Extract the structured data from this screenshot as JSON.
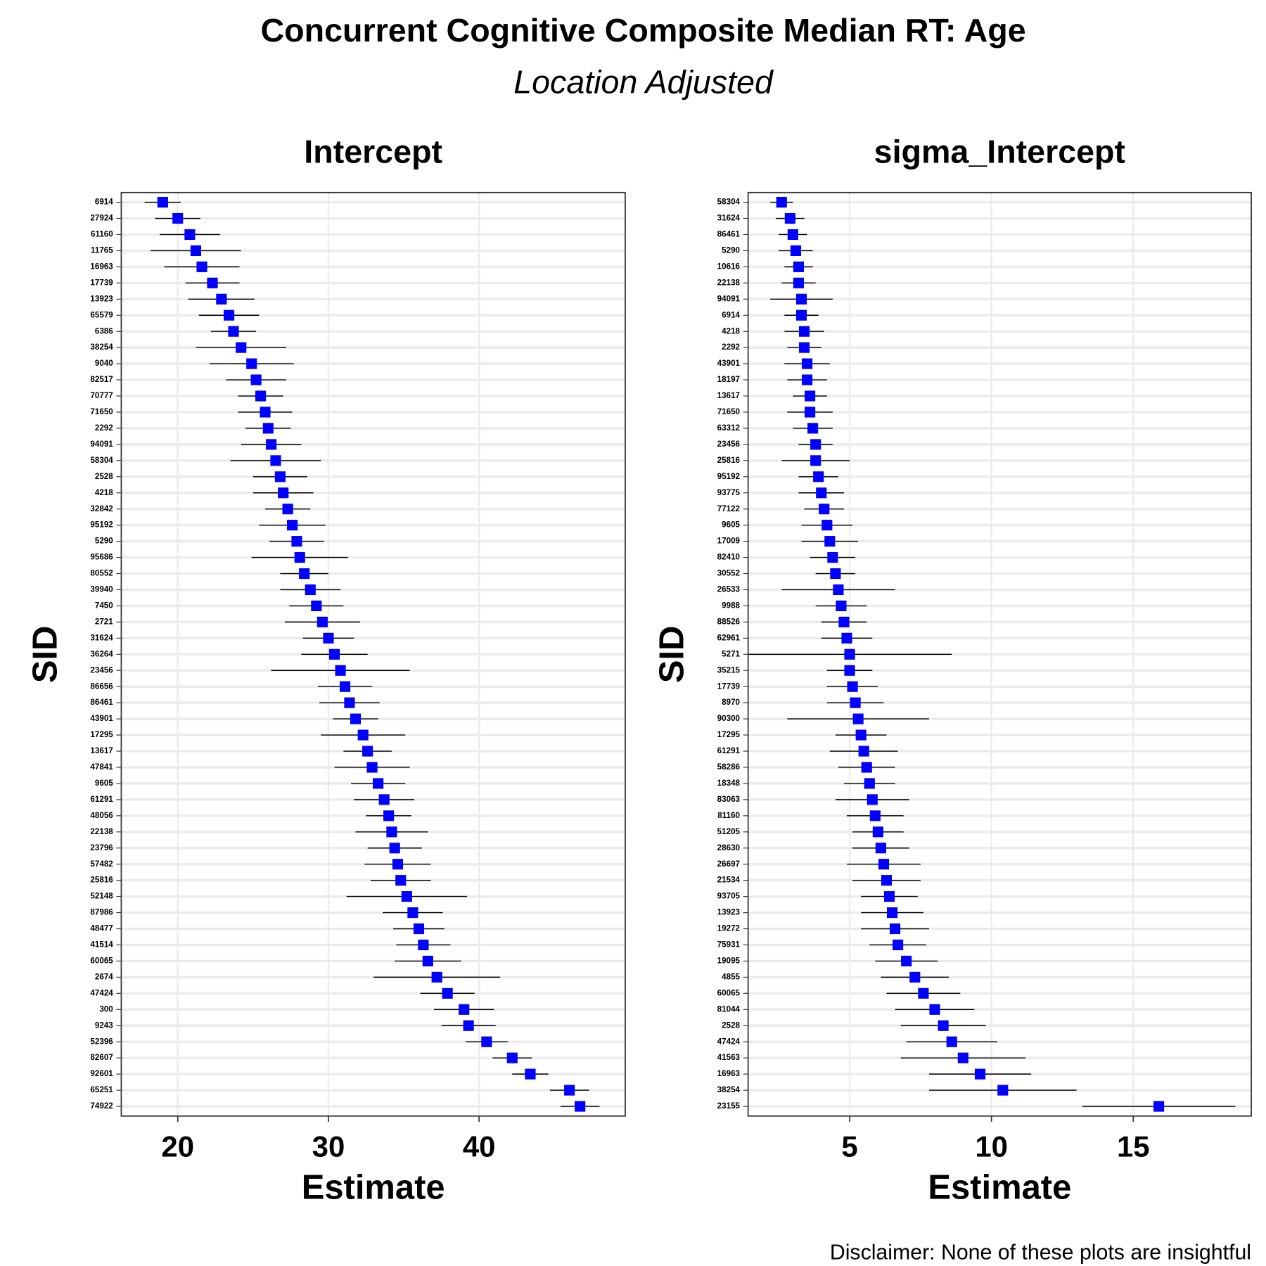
{
  "title": "Concurrent Cognitive Composite Median RT: Age",
  "subtitle": "Location Adjusted",
  "caption": "Disclaimer: None of these plots are insightful",
  "chart_data": [
    {
      "type": "pointrange",
      "title": "Intercept",
      "x_label": "Estimate",
      "y_label": "SID",
      "color": "#0000ff",
      "error_color": "#000000",
      "grid": true,
      "xlim": [
        16.25,
        49.7
      ],
      "xticks": [
        20,
        30,
        40
      ],
      "categories": [
        "6914",
        "27924",
        "61160",
        "11765",
        "16963",
        "17739",
        "13923",
        "65579",
        "6386",
        "38254",
        "9040",
        "82517",
        "70777",
        "71650",
        "2292",
        "94091",
        "58304",
        "2528",
        "4218",
        "32842",
        "95192",
        "5290",
        "95686",
        "80552",
        "39940",
        "7450",
        "2721",
        "31624",
        "36264",
        "23456",
        "86656",
        "86461",
        "43901",
        "17295",
        "13617",
        "47841",
        "9605",
        "61291",
        "48056",
        "22138",
        "23796",
        "57482",
        "25816",
        "52148",
        "87986",
        "48477",
        "41514",
        "60065",
        "2674",
        "47424",
        "300",
        "9243",
        "52396",
        "82607",
        "92601",
        "65251",
        "74922"
      ],
      "values": [
        19.0,
        20.0,
        20.8,
        21.2,
        21.6,
        22.3,
        22.9,
        23.4,
        23.7,
        24.2,
        24.9,
        25.2,
        25.5,
        25.8,
        26.0,
        26.2,
        26.5,
        26.8,
        27.0,
        27.3,
        27.6,
        27.9,
        28.1,
        28.4,
        28.8,
        29.2,
        29.6,
        30.0,
        30.4,
        30.8,
        31.1,
        31.4,
        31.8,
        32.3,
        32.6,
        32.9,
        33.3,
        33.7,
        34.0,
        34.2,
        34.4,
        34.6,
        34.8,
        35.2,
        35.6,
        36.0,
        36.3,
        36.6,
        37.2,
        37.9,
        39.0,
        39.3,
        40.5,
        42.2,
        43.4,
        46.0,
        46.7
      ],
      "errors": [
        1.2,
        1.5,
        2.0,
        3.0,
        2.5,
        1.8,
        2.2,
        2.0,
        1.5,
        3.0,
        2.8,
        2.0,
        1.5,
        1.8,
        1.5,
        2.0,
        3.0,
        1.8,
        2.0,
        1.5,
        2.2,
        1.8,
        3.2,
        1.6,
        2.0,
        1.8,
        2.5,
        1.7,
        2.2,
        4.6,
        1.8,
        2.0,
        1.5,
        2.8,
        1.6,
        2.5,
        1.8,
        2.0,
        1.5,
        2.4,
        1.8,
        2.2,
        2.0,
        4.0,
        2.0,
        1.7,
        1.8,
        2.2,
        4.2,
        1.8,
        2.0,
        1.8,
        1.4,
        1.3,
        1.2,
        1.3,
        1.3
      ]
    },
    {
      "type": "pointrange",
      "title": "sigma_Intercept",
      "x_label": "Estimate",
      "y_label": "SID",
      "color": "#0000ff",
      "error_color": "#000000",
      "grid": true,
      "xlim": [
        1.42,
        19.16
      ],
      "xticks": [
        5,
        10,
        15
      ],
      "categories": [
        "58304",
        "31624",
        "86461",
        "5290",
        "10616",
        "22138",
        "94091",
        "6914",
        "4218",
        "2292",
        "43901",
        "18197",
        "13617",
        "71650",
        "63312",
        "23456",
        "25816",
        "95192",
        "93775",
        "77122",
        "9605",
        "17009",
        "82410",
        "30552",
        "26533",
        "9988",
        "88526",
        "62961",
        "5271",
        "35215",
        "17739",
        "8970",
        "90300",
        "17295",
        "61291",
        "58286",
        "18348",
        "83063",
        "81160",
        "51205",
        "28630",
        "26697",
        "21534",
        "93705",
        "13923",
        "19272",
        "75931",
        "19095",
        "4855",
        "60065",
        "81044",
        "2528",
        "47424",
        "41563",
        "16963",
        "38254",
        "23155"
      ],
      "values": [
        2.6,
        2.9,
        3.0,
        3.1,
        3.2,
        3.2,
        3.3,
        3.3,
        3.4,
        3.4,
        3.5,
        3.5,
        3.6,
        3.6,
        3.7,
        3.8,
        3.8,
        3.9,
        4.0,
        4.1,
        4.2,
        4.3,
        4.4,
        4.5,
        4.6,
        4.7,
        4.8,
        4.9,
        5.0,
        5.0,
        5.1,
        5.2,
        5.3,
        5.4,
        5.5,
        5.6,
        5.7,
        5.8,
        5.9,
        6.0,
        6.1,
        6.2,
        6.3,
        6.4,
        6.5,
        6.6,
        6.7,
        7.0,
        7.3,
        7.6,
        8.0,
        8.3,
        8.6,
        9.0,
        9.6,
        10.4,
        15.9
      ],
      "errors": [
        0.4,
        0.5,
        0.5,
        0.6,
        0.5,
        0.6,
        1.1,
        0.6,
        0.7,
        0.6,
        0.8,
        0.7,
        0.6,
        0.8,
        0.7,
        0.6,
        1.2,
        0.7,
        0.8,
        0.7,
        0.9,
        1.0,
        0.8,
        0.7,
        2.0,
        0.9,
        0.8,
        0.9,
        3.6,
        0.8,
        0.9,
        1.0,
        2.5,
        0.9,
        1.2,
        1.0,
        0.9,
        1.3,
        1.0,
        0.9,
        1.0,
        1.3,
        1.2,
        1.0,
        1.1,
        1.2,
        1.0,
        1.1,
        1.2,
        1.3,
        1.4,
        1.5,
        1.6,
        2.2,
        1.8,
        2.6,
        2.7
      ]
    }
  ]
}
